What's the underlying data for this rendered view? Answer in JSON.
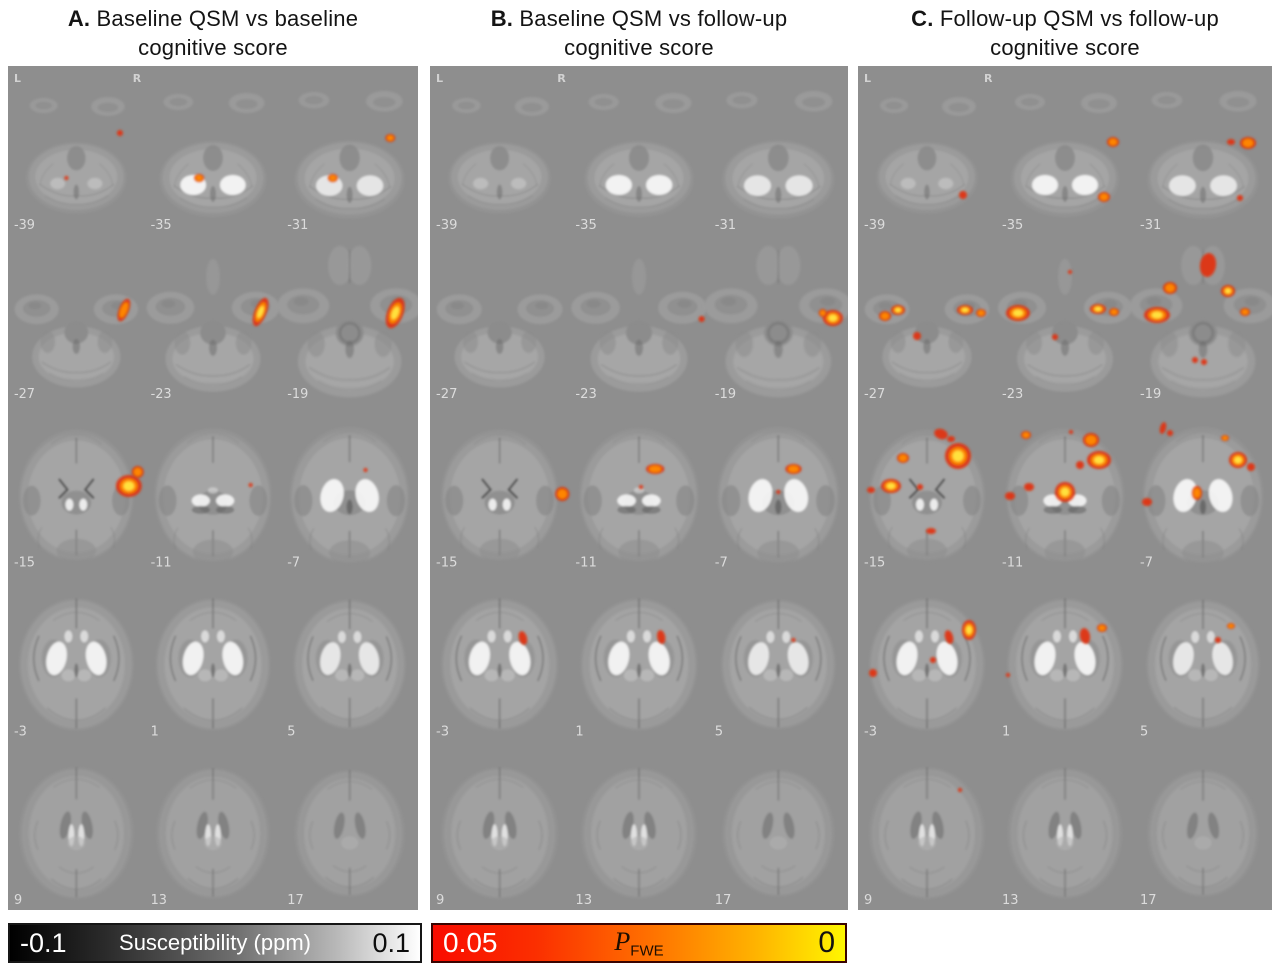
{
  "figure": {
    "type": "brain-qsm-statistical-montage",
    "grid": {
      "rows": 5,
      "cols": 3
    },
    "slice_rows": [
      [
        "-39",
        "-35",
        "-31"
      ],
      [
        "-27",
        "-23",
        "-19"
      ],
      [
        "-15",
        "-11",
        "-7"
      ],
      [
        "-3",
        "1",
        "5"
      ],
      [
        "9",
        "13",
        "17"
      ]
    ],
    "cluster_fields": "x,y,rx,ry,rotation_deg,heat(0=red,1=+orange,2=+yellow-core)",
    "panels": [
      {
        "id": "A",
        "title_letter": "A.",
        "title_line1_rest": " Baseline QSM vs baseline",
        "title_line2": "cognitive score",
        "orientation": {
          "left": "L",
          "right": "R"
        },
        "clusters": [
          [
            113,
            67,
            3,
            3,
            0,
            0
          ],
          [
            59,
            112,
            2,
            2,
            0,
            0
          ],
          [
            193,
            112,
            5,
            4,
            0,
            1
          ],
          [
            328,
            112,
            5,
            4,
            0,
            1
          ],
          [
            386,
            72,
            5,
            4,
            0,
            1
          ],
          [
            117,
            244,
            5,
            12,
            22,
            1
          ],
          [
            255,
            246,
            6,
            15,
            22,
            2
          ],
          [
            391,
            247,
            8,
            16,
            22,
            2
          ],
          [
            122,
            420,
            13,
            11,
            0,
            2
          ],
          [
            131,
            406,
            6,
            6,
            0,
            1
          ],
          [
            245,
            419,
            2,
            2,
            0,
            0
          ],
          [
            361,
            404,
            2,
            2,
            0,
            0
          ]
        ]
      },
      {
        "id": "B",
        "title_letter": "B.",
        "title_line1_rest": " Baseline QSM vs follow-up",
        "title_line2": "cognitive score",
        "orientation": {
          "left": "L",
          "right": "R"
        },
        "clusters": [
          [
            269,
            253,
            3,
            3,
            0,
            0
          ],
          [
            399,
            252,
            10,
            8,
            0,
            2
          ],
          [
            389,
            247,
            4,
            4,
            0,
            1
          ],
          [
            131,
            428,
            7,
            7,
            0,
            1
          ],
          [
            223,
            403,
            9,
            5,
            0,
            1
          ],
          [
            209,
            421,
            2,
            2,
            0,
            0
          ],
          [
            360,
            403,
            8,
            5,
            0,
            1
          ],
          [
            345,
            426,
            2,
            2,
            0,
            0
          ],
          [
            92,
            572,
            4,
            7,
            -15,
            0
          ],
          [
            229,
            571,
            4,
            7,
            -10,
            0
          ],
          [
            360,
            574,
            2,
            2,
            0,
            0
          ]
        ]
      },
      {
        "id": "C",
        "title_letter": "C.",
        "title_line1_rest": " Follow-up QSM vs follow-up",
        "title_line2": "cognitive score",
        "orientation": {
          "left": "L",
          "right": "R"
        },
        "clusters": [
          [
            105,
            129,
            4,
            4,
            0,
            0
          ],
          [
            255,
            76,
            6,
            5,
            0,
            1
          ],
          [
            246,
            131,
            6,
            5,
            0,
            1
          ],
          [
            373,
            76,
            4,
            3,
            0,
            0
          ],
          [
            390,
            77,
            8,
            6,
            0,
            1
          ],
          [
            382,
            132,
            3,
            3,
            0,
            0
          ],
          [
            27,
            250,
            6,
            5,
            0,
            1
          ],
          [
            40,
            244,
            7,
            5,
            0,
            2
          ],
          [
            59,
            270,
            4,
            4,
            0,
            0
          ],
          [
            107,
            244,
            8,
            5,
            0,
            2
          ],
          [
            123,
            247,
            5,
            4,
            0,
            1
          ],
          [
            160,
            247,
            12,
            8,
            0,
            2
          ],
          [
            212,
            206,
            2,
            2,
            0,
            0
          ],
          [
            240,
            243,
            8,
            5,
            0,
            2
          ],
          [
            256,
            246,
            5,
            4,
            0,
            1
          ],
          [
            197,
            271,
            3,
            3,
            0,
            0
          ],
          [
            350,
            199,
            8,
            12,
            8,
            0
          ],
          [
            312,
            222,
            7,
            6,
            0,
            1
          ],
          [
            370,
            225,
            7,
            6,
            0,
            2
          ],
          [
            299,
            249,
            13,
            8,
            0,
            2
          ],
          [
            387,
            246,
            5,
            4,
            0,
            1
          ],
          [
            337,
            294,
            3,
            3,
            0,
            0
          ],
          [
            346,
            296,
            3,
            3,
            0,
            0
          ],
          [
            83,
            368,
            7,
            5,
            20,
            0
          ],
          [
            93,
            373,
            4,
            3,
            0,
            0
          ],
          [
            45,
            392,
            6,
            5,
            0,
            1
          ],
          [
            100,
            390,
            13,
            13,
            0,
            2
          ],
          [
            33,
            420,
            10,
            7,
            0,
            2
          ],
          [
            13,
            424,
            4,
            3,
            0,
            0
          ],
          [
            62,
            421,
            3,
            3,
            0,
            0
          ],
          [
            73,
            465,
            5,
            3,
            0,
            0
          ],
          [
            168,
            369,
            5,
            4,
            0,
            1
          ],
          [
            213,
            366,
            2,
            2,
            0,
            0
          ],
          [
            233,
            374,
            8,
            7,
            0,
            1
          ],
          [
            241,
            394,
            12,
            9,
            0,
            2
          ],
          [
            222,
            399,
            4,
            4,
            0,
            0
          ],
          [
            207,
            426,
            10,
            10,
            0,
            2
          ],
          [
            171,
            421,
            5,
            4,
            0,
            0
          ],
          [
            152,
            430,
            5,
            4,
            0,
            0
          ],
          [
            305,
            362,
            3,
            6,
            15,
            0
          ],
          [
            312,
            367,
            3,
            3,
            0,
            0
          ],
          [
            367,
            372,
            4,
            3,
            0,
            1
          ],
          [
            380,
            394,
            9,
            8,
            0,
            2
          ],
          [
            393,
            401,
            4,
            4,
            0,
            0
          ],
          [
            339,
            427,
            5,
            7,
            0,
            1
          ],
          [
            289,
            436,
            5,
            4,
            0,
            0
          ],
          [
            111,
            564,
            7,
            10,
            0,
            2
          ],
          [
            91,
            571,
            4,
            7,
            -15,
            0
          ],
          [
            75,
            594,
            3,
            3,
            0,
            0
          ],
          [
            15,
            607,
            4,
            4,
            0,
            0
          ],
          [
            244,
            562,
            5,
            4,
            0,
            1
          ],
          [
            227,
            570,
            5,
            8,
            -10,
            0
          ],
          [
            150,
            609,
            2,
            2,
            0,
            0
          ],
          [
            373,
            560,
            4,
            3,
            0,
            1
          ],
          [
            360,
            574,
            3,
            3,
            0,
            0
          ],
          [
            102,
            724,
            2,
            2,
            0,
            0
          ]
        ]
      }
    ],
    "colorbars": [
      {
        "id": "susceptibility",
        "min_label": "-0.1",
        "title": "Susceptibility (ppm)",
        "max_label": "0.1",
        "gradient": [
          "#000000",
          "#ffffff"
        ]
      },
      {
        "id": "pfwe",
        "min_label": "0.05",
        "title_p": "P",
        "title_sub": "FWE",
        "max_label": "0",
        "gradient": [
          "#fa0b00",
          "#ff6f00",
          "#fff600"
        ]
      }
    ],
    "colors": {
      "panel_background": "#8e8e8e",
      "cluster_red": "#e22f08",
      "cluster_orange": "#ff8a00",
      "cluster_yellow": "#ffe23d",
      "slice_label": "#dcdcdc",
      "orientation_label": "#d2d2d2"
    }
  }
}
